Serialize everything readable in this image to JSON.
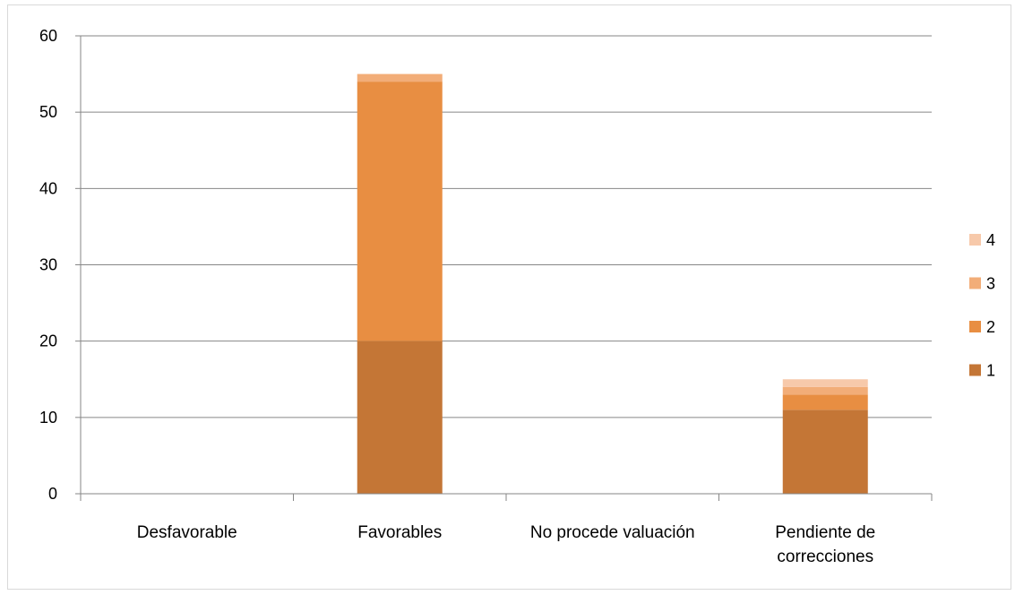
{
  "chart_data": {
    "type": "bar",
    "stacked": true,
    "categories": [
      "Desfavorable",
      "Favorables",
      "No procede valuación",
      "Pendiente de correcciones"
    ],
    "category_lines": [
      [
        "Desfavorable"
      ],
      [
        "Favorables"
      ],
      [
        "No procede valuación"
      ],
      [
        "Pendiente de",
        "correcciones"
      ]
    ],
    "series": [
      {
        "name": "1",
        "values": [
          0,
          20,
          0,
          11
        ],
        "color": "#c47636"
      },
      {
        "name": "2",
        "values": [
          0,
          34,
          0,
          2
        ],
        "color": "#e88e42"
      },
      {
        "name": "3",
        "values": [
          0,
          1,
          0,
          1
        ],
        "color": "#f2ad78"
      },
      {
        "name": "4",
        "values": [
          0,
          0,
          0,
          1
        ],
        "color": "#f7c9aa"
      }
    ],
    "ylim": [
      0,
      60
    ],
    "yticks": [
      "0",
      "10",
      "20",
      "30",
      "40",
      "50",
      "60"
    ],
    "grid": true,
    "legend": "right",
    "title": "",
    "xlabel": "",
    "ylabel": ""
  }
}
